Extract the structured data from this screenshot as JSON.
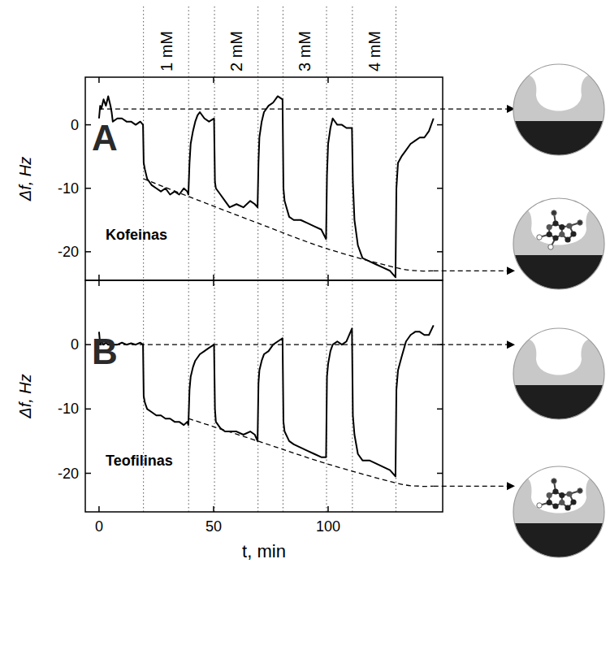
{
  "chart_data": [
    {
      "type": "line",
      "panel_label": "A",
      "y_label": "Δf, Hz",
      "xlim": [
        -6,
        150
      ],
      "xticks": [
        0,
        50,
        100
      ],
      "ylim": [
        -24.5,
        7.5
      ],
      "yticks": [
        -20,
        -10,
        0
      ],
      "tick_labels": "y",
      "events": [
        19.4,
        39.1,
        50.4,
        69.4,
        80.3,
        99.3,
        110.6,
        129.6
      ],
      "annotations": [
        {
          "text": "1 mM",
          "x": 29.3
        },
        {
          "text": "2 mM",
          "x": 59.9
        },
        {
          "text": "3 mM",
          "x": 89.8
        },
        {
          "text": "4 mM",
          "x": 120.1
        }
      ],
      "baseline": 2.5,
      "envelope": {
        "x": [
          19.4,
          39.1,
          69.4,
          99.3,
          129.6,
          140,
          146
        ],
        "y": [
          -8.5,
          -11.3,
          -15.5,
          -19.5,
          -22.5,
          -23,
          -23
        ]
      },
      "x": [
        0,
        0.5,
        1,
        2,
        3,
        4,
        5,
        5.5,
        6,
        8,
        10,
        12,
        14,
        16,
        18,
        19.2,
        19.5,
        20,
        21,
        23,
        25,
        27,
        29,
        31,
        33,
        35,
        37,
        38.5,
        39,
        39.5,
        40,
        41,
        42,
        43,
        44,
        46,
        48,
        50.2,
        50.6,
        51,
        53,
        55,
        57,
        60,
        63,
        66,
        68,
        69.2,
        69.6,
        70,
        71,
        72,
        74,
        76,
        78,
        80.1,
        80.5,
        81,
        83,
        85,
        88,
        91,
        94,
        97,
        99.1,
        99.5,
        100,
        101,
        102,
        104,
        106,
        108,
        110.4,
        110.8,
        111.5,
        113,
        115,
        118,
        121,
        124,
        127,
        129.4,
        129.8,
        130.5,
        132,
        134,
        136,
        138,
        140,
        142,
        144,
        146
      ],
      "series": [
        {
          "name": "Kofeinas",
          "color": "#000000",
          "values": [
            1,
            3,
            2.5,
            4,
            3,
            4.5,
            3,
            2,
            0.5,
            1,
            1,
            0.5,
            0.5,
            0,
            0.5,
            0,
            -6,
            -7,
            -8.5,
            -9.5,
            -10,
            -10.5,
            -10,
            -11,
            -10.5,
            -11,
            -10,
            -10.5,
            -11,
            -6,
            -3,
            -1,
            0.5,
            1.5,
            2,
            1,
            0.5,
            1,
            -9,
            -10,
            -11,
            -12,
            -13,
            -12.5,
            -13,
            -12,
            -12.5,
            -13,
            -6,
            -2,
            0.5,
            2,
            3,
            3.5,
            4.5,
            4,
            -10,
            -12,
            -14.5,
            -15,
            -15,
            -15.5,
            -16,
            -16.5,
            -18,
            -8,
            -3,
            -0.5,
            1,
            0,
            0,
            -0.5,
            -0.5,
            -9,
            -15,
            -19,
            -21,
            -21.5,
            -22,
            -22.5,
            -23,
            -24,
            -10,
            -6,
            -5,
            -4,
            -3,
            -2.5,
            -2,
            -2,
            -1,
            1
          ]
        }
      ]
    },
    {
      "type": "line",
      "panel_label": "B",
      "y_label": "Δf, Hz",
      "x_label": "t, min",
      "xlim": [
        -6,
        150
      ],
      "xticks": [
        0,
        50,
        100
      ],
      "ylim": [
        -26,
        10
      ],
      "yticks": [
        -20,
        -10,
        0
      ],
      "events": [
        19.4,
        39.1,
        50.4,
        69.4,
        80.3,
        99.3,
        110.6,
        129.6
      ],
      "baseline": 0,
      "envelope": {
        "x": [
          39.1,
          69.4,
          99.3,
          129.6,
          140,
          146
        ],
        "y": [
          -11.5,
          -15,
          -18.5,
          -21.5,
          -22,
          -22
        ]
      },
      "x": [
        0,
        0.5,
        1,
        2,
        3,
        4,
        5,
        5.5,
        6,
        8,
        10,
        12,
        14,
        16,
        18,
        19.2,
        19.5,
        20,
        21,
        23,
        25,
        27,
        29,
        31,
        33,
        35,
        37,
        38.5,
        39,
        39.5,
        40,
        41,
        42,
        43,
        44,
        46,
        48,
        50.2,
        50.6,
        51,
        53,
        55,
        57,
        60,
        63,
        66,
        68,
        69.2,
        69.6,
        70,
        71,
        72,
        74,
        76,
        78,
        80.1,
        80.5,
        81,
        83,
        85,
        88,
        91,
        94,
        97,
        99.1,
        99.5,
        100,
        101,
        102,
        104,
        106,
        108,
        110.4,
        110.8,
        111.5,
        113,
        115,
        118,
        121,
        124,
        127,
        129.4,
        129.8,
        130.5,
        132,
        134,
        136,
        138,
        140,
        142,
        144,
        146
      ],
      "series": [
        {
          "name": "Teofilinas",
          "color": "#000000",
          "values": [
            2,
            0,
            0.5,
            0,
            0.3,
            0,
            0,
            0.2,
            0,
            0,
            0.3,
            0,
            0.2,
            0,
            0.3,
            0,
            -8,
            -9,
            -10,
            -10.5,
            -11,
            -11,
            -11.5,
            -11.5,
            -12,
            -12,
            -12.5,
            -12,
            -12.5,
            -7,
            -5,
            -3.5,
            -2.5,
            -2,
            -1.5,
            -1,
            -0.5,
            0,
            -10,
            -12,
            -13,
            -13.5,
            -13.5,
            -13.5,
            -14,
            -13.5,
            -14,
            -15,
            -6,
            -4,
            -2.5,
            -1.5,
            -1,
            0,
            0.5,
            1,
            -12,
            -13.5,
            -15,
            -15.5,
            -16,
            -16.5,
            -17,
            -17.5,
            -17.5,
            -5,
            -3,
            -1,
            0,
            0.5,
            0,
            0.5,
            2.5,
            -11,
            -14,
            -17,
            -18,
            -18,
            -18.5,
            -19,
            -19.5,
            -20.5,
            -7,
            -4,
            -2,
            0.5,
            1.5,
            2,
            2,
            1.5,
            1.5,
            3
          ]
        }
      ]
    }
  ]
}
